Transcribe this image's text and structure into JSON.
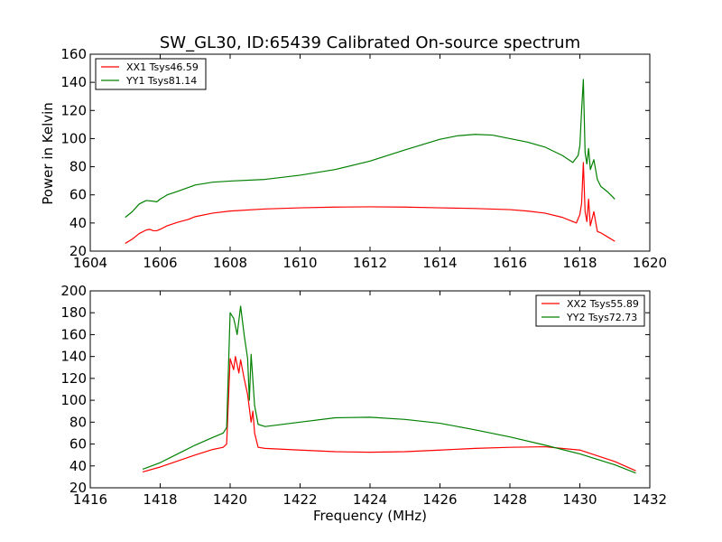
{
  "chart_data": [
    {
      "type": "line",
      "title": "SW_GL30, ID:65439 Calibrated On-source spectrum",
      "xlabel": "",
      "ylabel": "Power in Kelvin",
      "xlim": [
        1604,
        1620
      ],
      "ylim": [
        20,
        160
      ],
      "xticks": [
        1604,
        1606,
        1608,
        1610,
        1612,
        1614,
        1616,
        1618,
        1620
      ],
      "yticks": [
        20,
        40,
        60,
        80,
        100,
        120,
        140,
        160
      ],
      "legend_position": "top-left",
      "series": [
        {
          "name": "XX1 Tsys46.59",
          "color": "#ff0000",
          "points": [
            [
              1605.0,
              25.5
            ],
            [
              1605.2,
              28.5
            ],
            [
              1605.4,
              32.5
            ],
            [
              1605.6,
              35
            ],
            [
              1605.7,
              35.5
            ],
            [
              1605.8,
              34.5
            ],
            [
              1605.9,
              34.5
            ],
            [
              1606.0,
              35.5
            ],
            [
              1606.2,
              38
            ],
            [
              1606.5,
              40.5
            ],
            [
              1606.8,
              42.5
            ],
            [
              1607.0,
              44.5
            ],
            [
              1607.5,
              47
            ],
            [
              1608.0,
              48.5
            ],
            [
              1609.0,
              50
            ],
            [
              1610.0,
              50.8
            ],
            [
              1611.0,
              51.3
            ],
            [
              1612.0,
              51.5
            ],
            [
              1613.0,
              51.3
            ],
            [
              1614.0,
              50.8
            ],
            [
              1615.0,
              50.3
            ],
            [
              1616.0,
              49.5
            ],
            [
              1616.5,
              48.5
            ],
            [
              1617.0,
              47
            ],
            [
              1617.5,
              44
            ],
            [
              1617.9,
              40
            ],
            [
              1618.0,
              46
            ],
            [
              1618.05,
              54
            ],
            [
              1618.1,
              83
            ],
            [
              1618.15,
              48
            ],
            [
              1618.2,
              41
            ],
            [
              1618.25,
              57
            ],
            [
              1618.3,
              38
            ],
            [
              1618.4,
              48
            ],
            [
              1618.5,
              34
            ],
            [
              1618.6,
              33
            ],
            [
              1618.8,
              30
            ],
            [
              1619.0,
              27
            ]
          ]
        },
        {
          "name": "YY1 Tsys81.14",
          "color": "#008000",
          "points": [
            [
              1605.0,
              44
            ],
            [
              1605.2,
              48
            ],
            [
              1605.4,
              53.5
            ],
            [
              1605.6,
              56
            ],
            [
              1605.8,
              55.5
            ],
            [
              1605.9,
              55
            ],
            [
              1606.0,
              57
            ],
            [
              1606.2,
              60
            ],
            [
              1606.5,
              62.5
            ],
            [
              1607.0,
              67
            ],
            [
              1607.5,
              69
            ],
            [
              1608.0,
              69.8
            ],
            [
              1609.0,
              71
            ],
            [
              1610.0,
              74
            ],
            [
              1611.0,
              78
            ],
            [
              1612.0,
              84
            ],
            [
              1613.0,
              92
            ],
            [
              1614.0,
              99.5
            ],
            [
              1614.5,
              102
            ],
            [
              1615.0,
              103
            ],
            [
              1615.5,
              102.5
            ],
            [
              1616.0,
              100
            ],
            [
              1616.5,
              97.5
            ],
            [
              1617.0,
              94
            ],
            [
              1617.5,
              88
            ],
            [
              1617.8,
              83
            ],
            [
              1617.95,
              88
            ],
            [
              1618.0,
              95
            ],
            [
              1618.05,
              120
            ],
            [
              1618.1,
              142
            ],
            [
              1618.15,
              90
            ],
            [
              1618.2,
              82
            ],
            [
              1618.25,
              93
            ],
            [
              1618.3,
              78
            ],
            [
              1618.4,
              85
            ],
            [
              1618.5,
              71
            ],
            [
              1618.6,
              66
            ],
            [
              1618.8,
              62
            ],
            [
              1619.0,
              57
            ]
          ]
        }
      ]
    },
    {
      "type": "line",
      "title": "",
      "xlabel": "Frequency (MHz)",
      "ylabel": "",
      "xlim": [
        1416,
        1432
      ],
      "ylim": [
        20,
        200
      ],
      "xticks": [
        1416,
        1418,
        1420,
        1422,
        1424,
        1426,
        1428,
        1430,
        1432
      ],
      "yticks": [
        20,
        40,
        60,
        80,
        100,
        120,
        140,
        160,
        180,
        200
      ],
      "legend_position": "top-right",
      "series": [
        {
          "name": "XX2 Tsys55.89",
          "color": "#ff0000",
          "points": [
            [
              1417.5,
              34.5
            ],
            [
              1418.0,
              39
            ],
            [
              1418.5,
              44.5
            ],
            [
              1419.0,
              50
            ],
            [
              1419.5,
              55
            ],
            [
              1419.8,
              57
            ],
            [
              1419.9,
              60
            ],
            [
              1420.0,
              138
            ],
            [
              1420.1,
              128
            ],
            [
              1420.15,
              140
            ],
            [
              1420.25,
              125
            ],
            [
              1420.3,
              137
            ],
            [
              1420.4,
              120
            ],
            [
              1420.5,
              105
            ],
            [
              1420.6,
              80
            ],
            [
              1420.65,
              90
            ],
            [
              1420.7,
              70
            ],
            [
              1420.8,
              57
            ],
            [
              1421.0,
              56
            ],
            [
              1422.0,
              54.5
            ],
            [
              1423.0,
              53
            ],
            [
              1424.0,
              52.5
            ],
            [
              1425.0,
              53
            ],
            [
              1426.0,
              54.5
            ],
            [
              1427.0,
              56
            ],
            [
              1428.0,
              57
            ],
            [
              1429.0,
              57.5
            ],
            [
              1430.0,
              54.5
            ],
            [
              1431.0,
              44
            ],
            [
              1431.6,
              35.5
            ]
          ]
        },
        {
          "name": "YY2 Tsys72.73",
          "color": "#008000",
          "points": [
            [
              1417.5,
              37
            ],
            [
              1418.0,
              43
            ],
            [
              1418.5,
              51
            ],
            [
              1419.0,
              59
            ],
            [
              1419.5,
              66
            ],
            [
              1419.8,
              70
            ],
            [
              1419.9,
              75
            ],
            [
              1420.0,
              180
            ],
            [
              1420.1,
              175
            ],
            [
              1420.15,
              168
            ],
            [
              1420.2,
              160
            ],
            [
              1420.3,
              186
            ],
            [
              1420.4,
              160
            ],
            [
              1420.5,
              138
            ],
            [
              1420.55,
              100
            ],
            [
              1420.6,
              142
            ],
            [
              1420.7,
              95
            ],
            [
              1420.8,
              78
            ],
            [
              1421.0,
              76
            ],
            [
              1422.0,
              80
            ],
            [
              1423.0,
              84
            ],
            [
              1424.0,
              84.5
            ],
            [
              1425.0,
              82.5
            ],
            [
              1426.0,
              79
            ],
            [
              1427.0,
              73
            ],
            [
              1428.0,
              66.5
            ],
            [
              1429.0,
              59
            ],
            [
              1430.0,
              51
            ],
            [
              1431.0,
              41
            ],
            [
              1431.6,
              33.5
            ]
          ]
        }
      ]
    }
  ]
}
